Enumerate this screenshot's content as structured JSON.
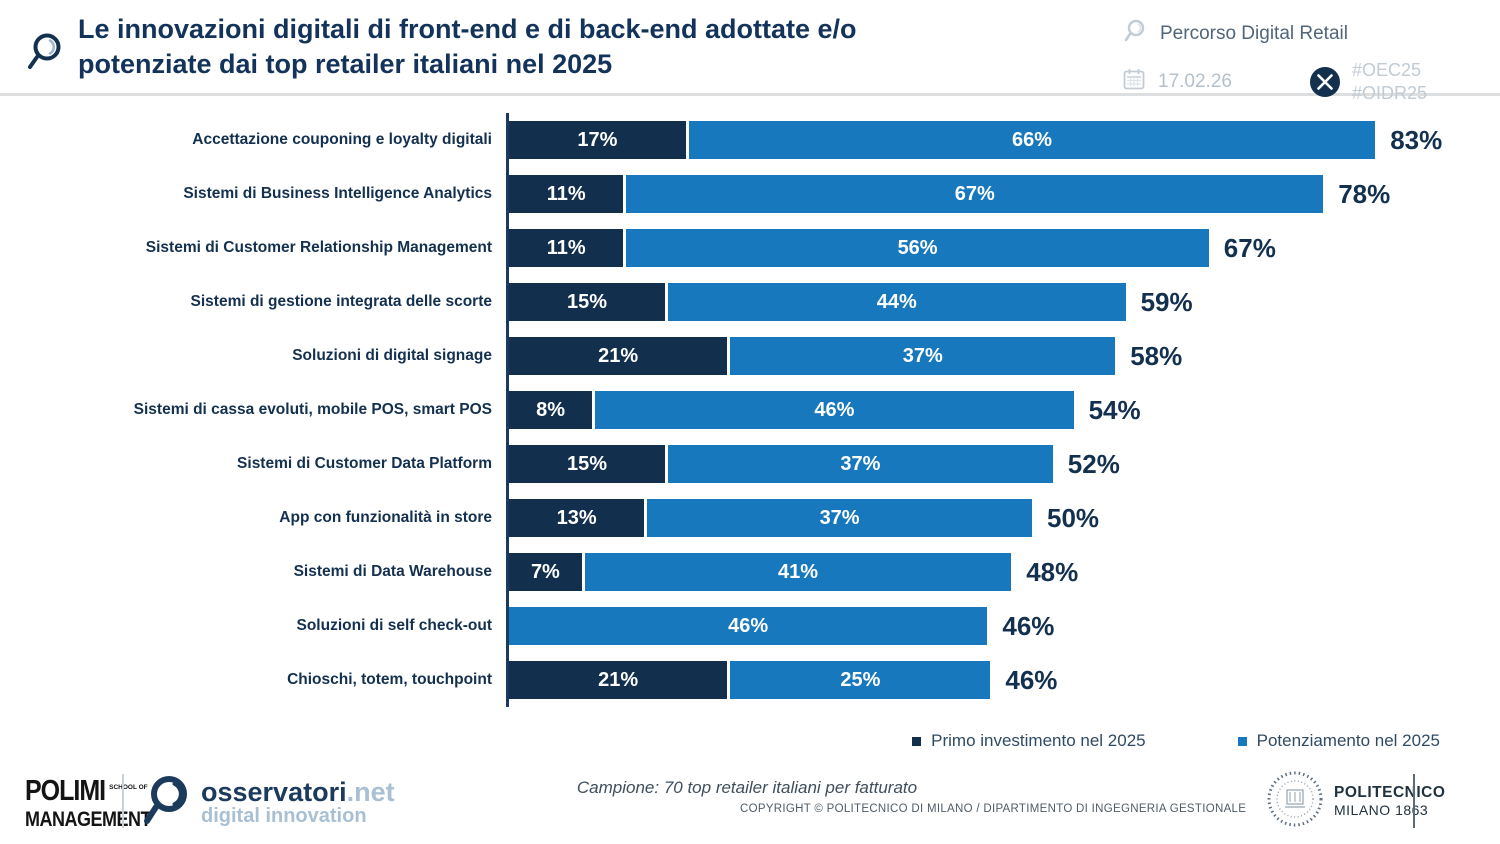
{
  "header": {
    "title_lines": [
      "Le innovazioni digitali di front-end e di back-end adottate e/o",
      "potenziate dai top retailer italiani nel 2025"
    ],
    "program": "Percorso Digital Retail",
    "date": "17.02.26",
    "hashtags": [
      "#OEC25",
      "#OIDR25"
    ]
  },
  "chart_data": {
    "type": "bar",
    "orientation": "horizontal",
    "stacked": true,
    "categories": [
      "Accettazione couponing e loyalty digitali",
      "Sistemi di Business Intelligence Analytics",
      "Sistemi di Customer Relationship Management",
      "Sistemi di gestione integrata delle scorte",
      "Soluzioni di digital signage",
      "Sistemi di cassa evoluti, mobile POS, smart POS",
      "Sistemi di Customer Data Platform",
      "App con funzionalità in store",
      "Sistemi di Data Warehouse",
      "Soluzioni di self check-out",
      "Chioschi, totem, touchpoint"
    ],
    "series": [
      {
        "name": "Primo investimento nel 2025",
        "color": "#132f4e",
        "values": [
          17,
          11,
          11,
          15,
          21,
          8,
          15,
          13,
          7,
          0,
          21
        ]
      },
      {
        "name": "Potenziamento nel 2025",
        "color": "#1878be",
        "values": [
          66,
          67,
          56,
          44,
          37,
          46,
          37,
          37,
          41,
          46,
          25
        ]
      }
    ],
    "totals": [
      83,
      78,
      67,
      59,
      58,
      54,
      52,
      50,
      48,
      46,
      46
    ],
    "value_suffix": "%",
    "xlim": [
      0,
      100
    ],
    "grid": false,
    "legend_position": "bottom-right"
  },
  "footer": {
    "polimi_line1": "POLIMI",
    "polimi_small": "SCHOOL OF",
    "polimi_line2": "MANAGEMENT",
    "osservatori_brand": "osservatori",
    "osservatori_tld": ".net",
    "osservatori_sub": "digital innovation",
    "sample_note": "Campione: 70 top retailer italiani per fatturato",
    "copyright": "COPYRIGHT © POLITECNICO DI MILANO / DIPARTIMENTO DI INGEGNERIA GESTIONALE",
    "politecnico_line1": "POLITECNICO",
    "politecnico_line2": "MILANO 1863"
  },
  "colors": {
    "navy": "#132f4e",
    "blue": "#1878be",
    "muted_text": "#b4c1cc",
    "slate_text": "#51657a"
  }
}
